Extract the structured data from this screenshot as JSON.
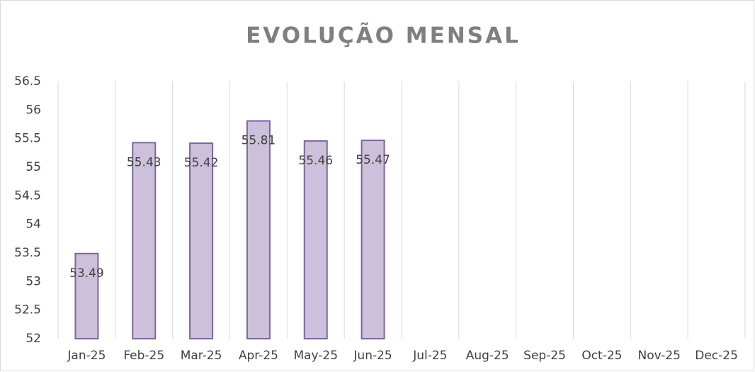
{
  "chart_data": {
    "type": "bar",
    "title": "EVOLUÇÃO MENSAL",
    "categories": [
      "Jan-25",
      "Feb-25",
      "Mar-25",
      "Apr-25",
      "May-25",
      "Jun-25",
      "Jul-25",
      "Aug-25",
      "Sep-25",
      "Oct-25",
      "Nov-25",
      "Dec-25"
    ],
    "values": [
      53.49,
      55.43,
      55.42,
      55.81,
      55.46,
      55.47,
      null,
      null,
      null,
      null,
      null,
      null
    ],
    "color": "#ccc1da",
    "border_color": "#8064a2",
    "ylim": [
      52,
      56.5
    ],
    "yticks": [
      52,
      52.5,
      53,
      53.5,
      54,
      54.5,
      55,
      55.5,
      56,
      56.5
    ],
    "xgrid": true,
    "ygrid": false,
    "data_labels": true
  }
}
